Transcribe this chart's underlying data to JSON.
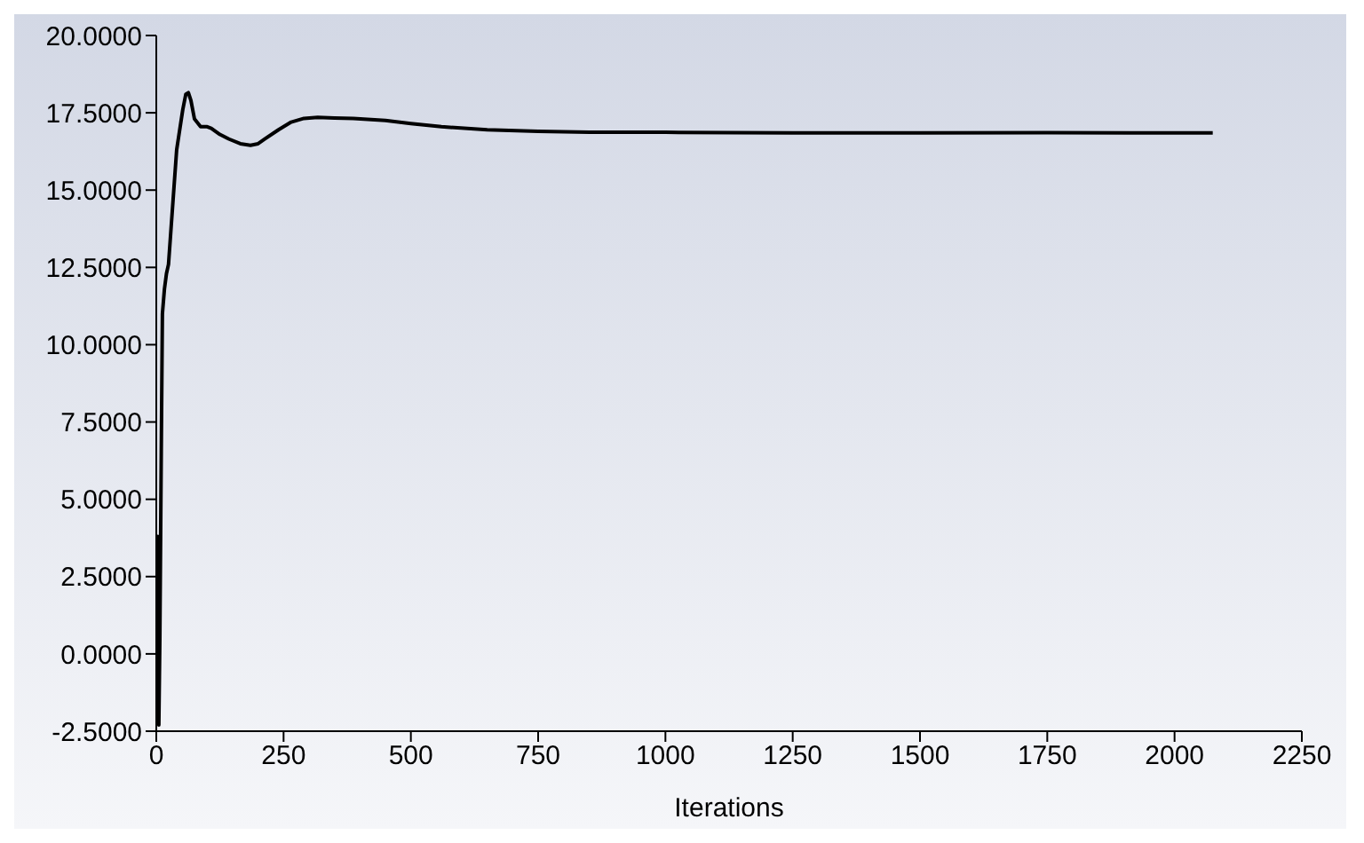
{
  "chart_data": {
    "type": "line",
    "xlabel": "Iterations",
    "series": [
      {
        "color": "#000000",
        "x": [
          1,
          2,
          3,
          5,
          7,
          10,
          12,
          16,
          20,
          24,
          30,
          40,
          52,
          58,
          63,
          68,
          75,
          87,
          100,
          108,
          125,
          143,
          165,
          185,
          200,
          213,
          240,
          265,
          290,
          317,
          350,
          387,
          450,
          500,
          560,
          650,
          750,
          850,
          1000,
          1250,
          1500,
          1750,
          2000,
          2075
        ],
        "values": [
          -2.3,
          0.5,
          3.8,
          -2.3,
          0.5,
          7,
          11,
          11.8,
          12.3,
          12.6,
          14,
          16.3,
          17.6,
          18.1,
          18.15,
          17.9,
          17.3,
          17.05,
          17.05,
          17.0,
          16.8,
          16.65,
          16.5,
          16.45,
          16.5,
          16.65,
          16.95,
          17.2,
          17.32,
          17.35,
          17.33,
          17.32,
          17.25,
          17.15,
          17.05,
          16.95,
          16.9,
          16.87,
          16.87,
          16.85,
          16.85,
          16.86,
          16.85,
          16.85
        ]
      }
    ],
    "xlim": [
      0,
      2250
    ],
    "xticks": [
      0,
      250,
      500,
      750,
      1000,
      1250,
      1500,
      1750,
      2000,
      2250
    ],
    "ylim": [
      -2.5,
      20
    ],
    "yticks": [
      {
        "value": -2.5,
        "label": "-2.5000"
      },
      {
        "value": 0,
        "label": "0.0000"
      },
      {
        "value": 2.5,
        "label": "2.5000"
      },
      {
        "value": 5,
        "label": "5.0000"
      },
      {
        "value": 7.5,
        "label": "7.5000"
      },
      {
        "value": 10,
        "label": "10.0000"
      },
      {
        "value": 12.5,
        "label": "12.5000"
      },
      {
        "value": 15,
        "label": "15.0000"
      },
      {
        "value": 17.5,
        "label": "17.5000"
      },
      {
        "value": 20,
        "label": "20.0000"
      }
    ],
    "marker": "none",
    "line_style": "solid"
  }
}
